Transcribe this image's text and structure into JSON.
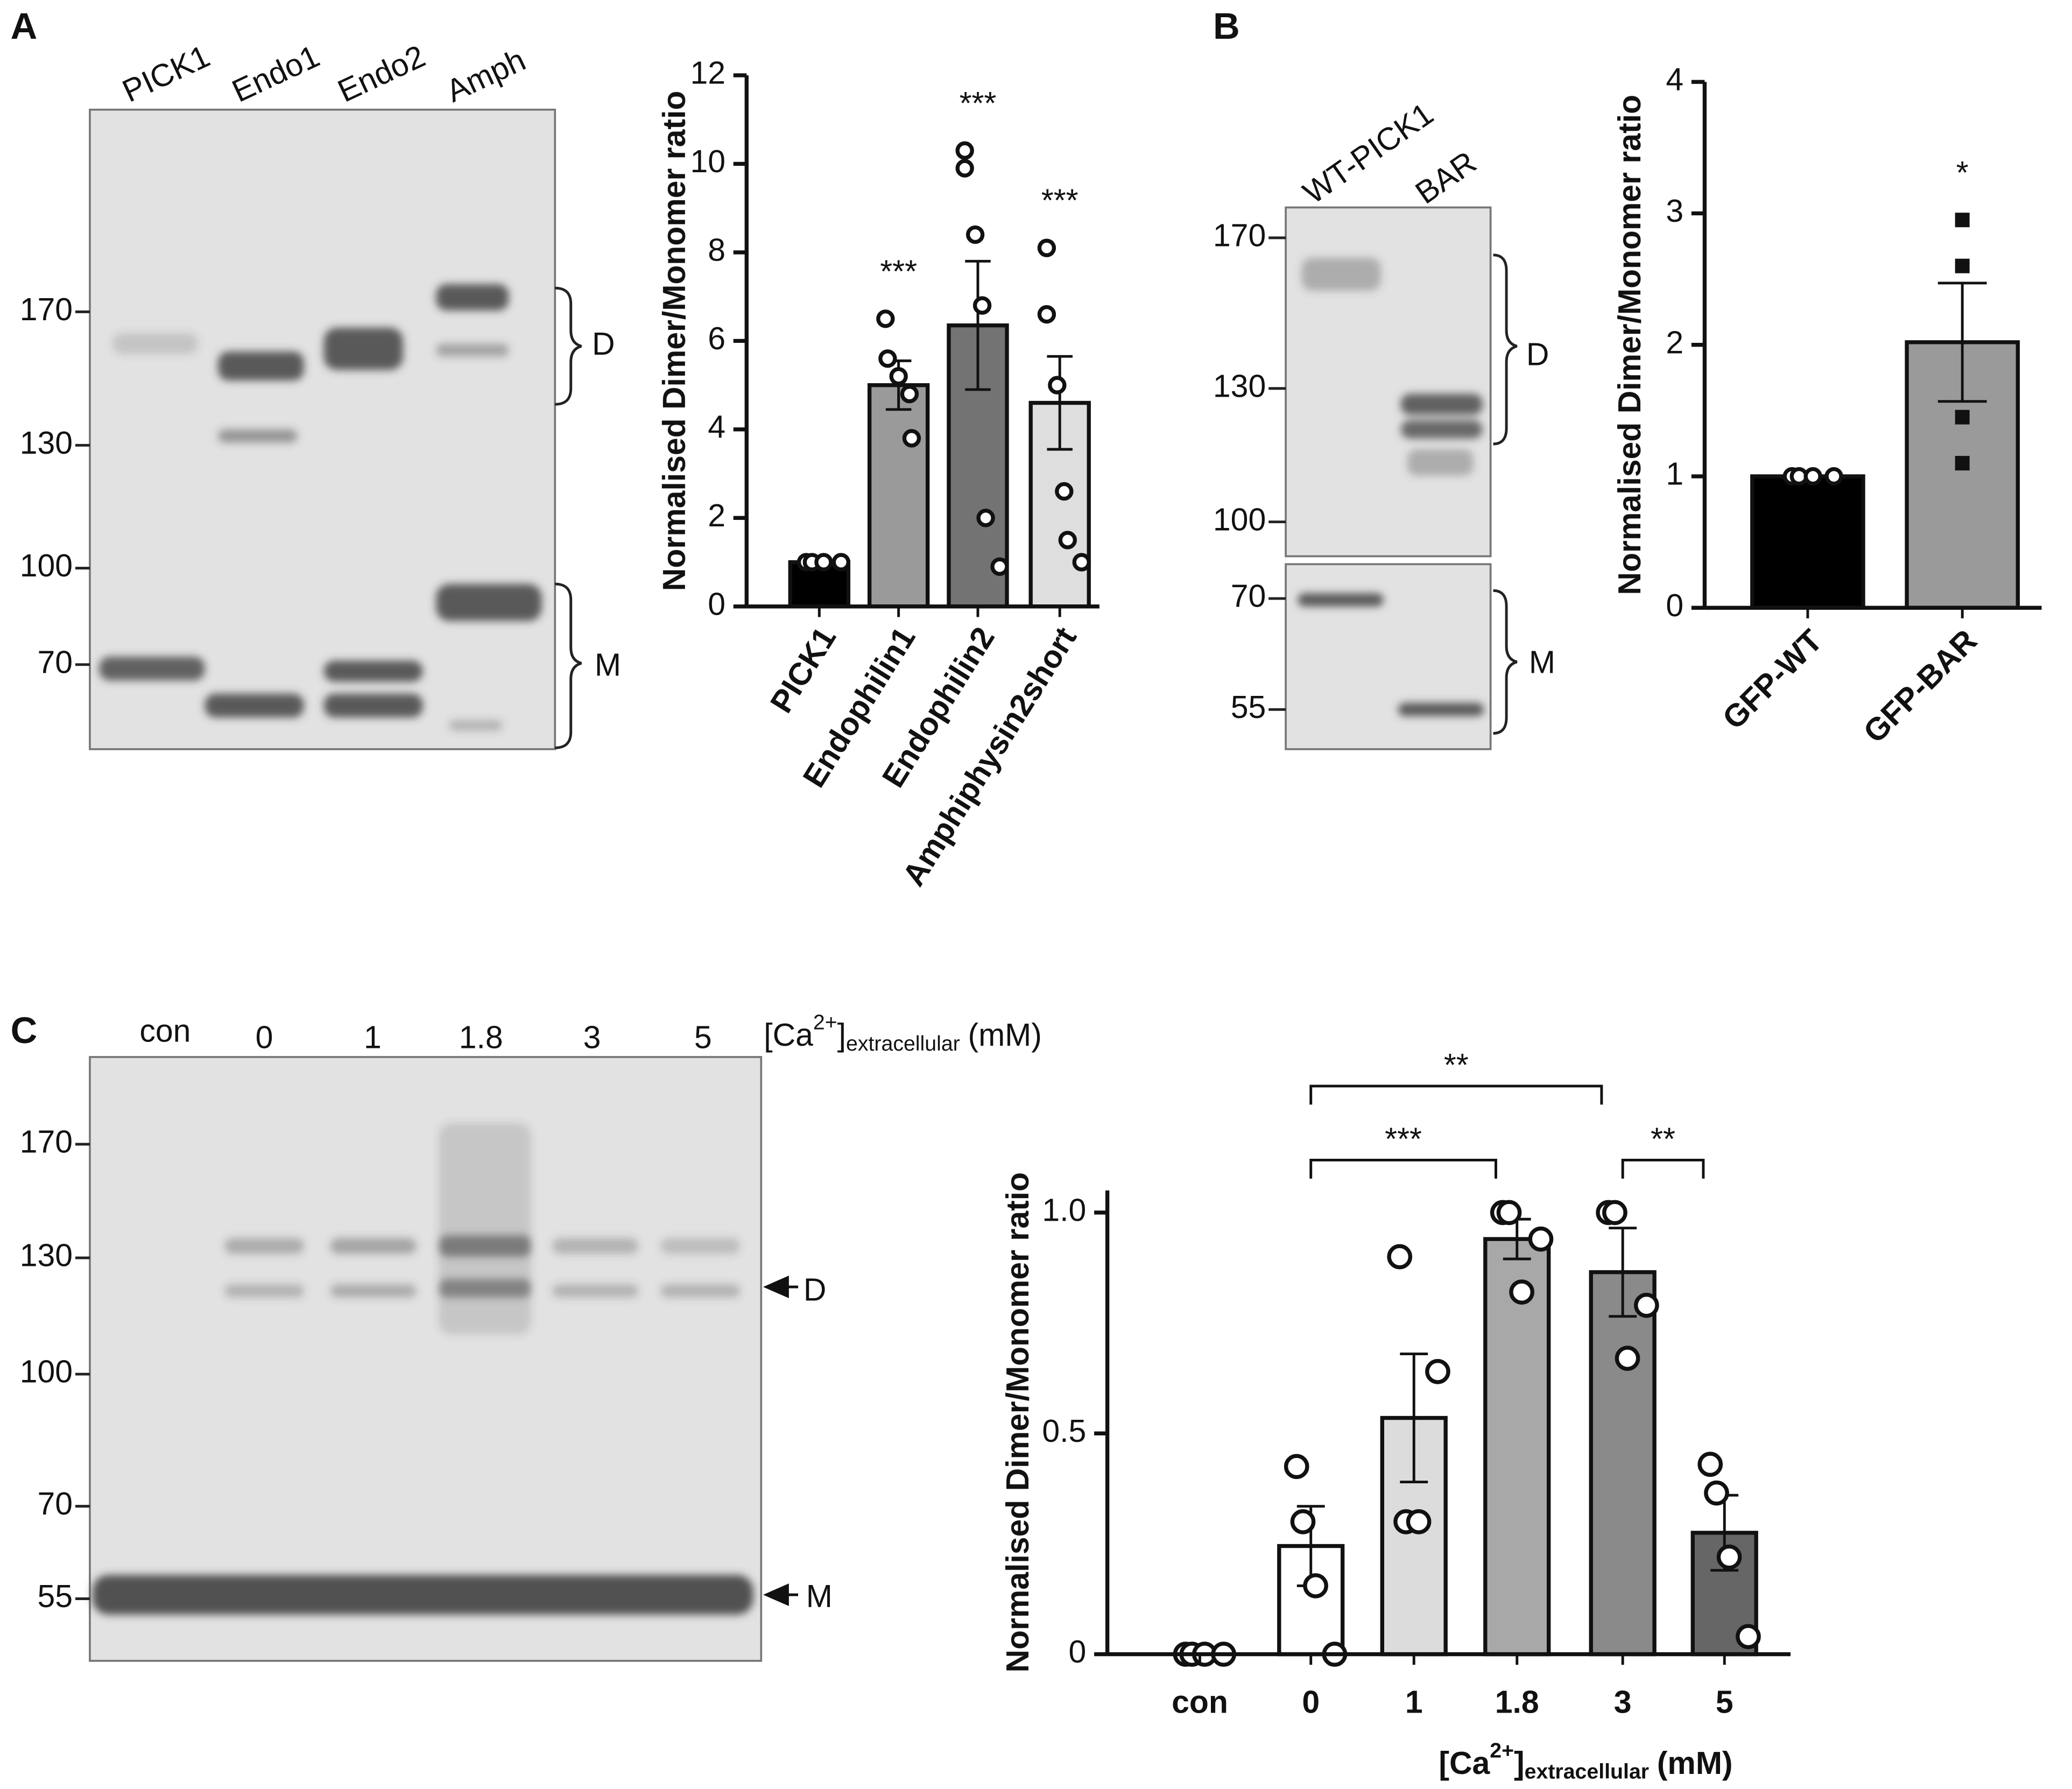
{
  "panel_labels": [
    "A",
    "B",
    "C"
  ],
  "blots": [
    {
      "lanes": [
        "PICK1",
        "Endo1",
        "Endo2",
        "Amph"
      ],
      "markers": [
        170,
        130,
        100,
        70
      ],
      "bands": [
        "D",
        "M"
      ]
    },
    {
      "lanes": [
        "WT-PICK1",
        "BAR"
      ],
      "markers": [
        170,
        130,
        100,
        70,
        55
      ],
      "bands": [
        "D",
        "M"
      ]
    },
    {
      "lanes": [
        "con",
        "0",
        "1",
        "1.8",
        "3",
        "5"
      ],
      "condition": [
        "[Ca",
        "2+",
        "]",
        "extracellular",
        "(mM)"
      ],
      "markers": [
        170,
        130,
        100,
        70,
        55
      ],
      "bands": [
        "D",
        "M"
      ]
    }
  ],
  "chart_data": [
    {
      "type": "bar",
      "y_label": "Normalised Dimer/Monomer ratio",
      "categories": [
        "PICK1",
        "Endophilin1",
        "Endophilin2",
        "Amphiphysin2short"
      ],
      "values": [
        1,
        5.0,
        6.35,
        4.6
      ],
      "errors": [
        0,
        0.55,
        1.45,
        1.05
      ],
      "points": [
        [
          1,
          1,
          1,
          1
        ],
        [
          6.5,
          5.6,
          5.2,
          4.8,
          3.8
        ],
        [
          10.3,
          9.9,
          8.4,
          6.8,
          2.0,
          0.9
        ],
        [
          8.1,
          6.6,
          5.0,
          2.6,
          1.5,
          1.0
        ]
      ],
      "markers": [
        "circle",
        "circle",
        "circle",
        "circle"
      ],
      "colors": [
        "#000000",
        "#9a9a9a",
        "#737373",
        "#dedede"
      ],
      "annotations": [
        null,
        "***",
        "***",
        "***"
      ],
      "ylim": [
        0,
        12
      ],
      "yticks": [
        0,
        2,
        4,
        6,
        8,
        10,
        12
      ]
    },
    {
      "type": "bar",
      "y_label": "Normalised Dimer/Monomer ratio",
      "categories": [
        "GFP-WT",
        "GFP-BAR"
      ],
      "values": [
        1,
        2.02
      ],
      "errors": [
        0,
        0.45
      ],
      "points": [
        [
          1,
          1,
          1,
          1
        ],
        [
          2.95,
          2.6,
          1.45,
          1.1
        ]
      ],
      "markers": [
        "circle",
        "square"
      ],
      "colors": [
        "#000000",
        "#9a9a9a"
      ],
      "annotations": [
        null,
        "*"
      ],
      "ylim": [
        0,
        4
      ],
      "yticks": [
        0,
        1,
        2,
        3,
        4
      ]
    },
    {
      "type": "bar",
      "y_label": "Normalised Dimer/Monomer ratio",
      "x_label": [
        "[Ca",
        "2+",
        "]",
        "extracellular",
        "(mM)"
      ],
      "categories": [
        "con",
        "0",
        "1",
        "1.8",
        "3",
        "5"
      ],
      "values": [
        0,
        0.245,
        0.535,
        0.94,
        0.865,
        0.275
      ],
      "errors": [
        0,
        0.09,
        0.145,
        0.045,
        0.1,
        0.085
      ],
      "points": [
        [
          0,
          0,
          0,
          0
        ],
        [
          0.425,
          0.3,
          0.155,
          0.0
        ],
        [
          0.9,
          0.3,
          0.3,
          0.64
        ],
        [
          1.0,
          1.0,
          0.82,
          0.94
        ],
        [
          1.0,
          1.0,
          0.67,
          0.79
        ],
        [
          0.43,
          0.365,
          0.22,
          0.04
        ]
      ],
      "markers": [
        "circle",
        "circle",
        "circle",
        "circle",
        "circle",
        "circle"
      ],
      "colors": [
        "#ffffff",
        "#ffffff",
        "#dcdcdc",
        "#a8a8a8",
        "#8a8a8a",
        "#666666"
      ],
      "brackets": [
        "**",
        "***",
        "**"
      ],
      "ylim": [
        0,
        1.05
      ],
      "yticks": [
        0,
        0.5,
        {
          "value": 1,
          "label": "1.0"
        }
      ]
    }
  ]
}
